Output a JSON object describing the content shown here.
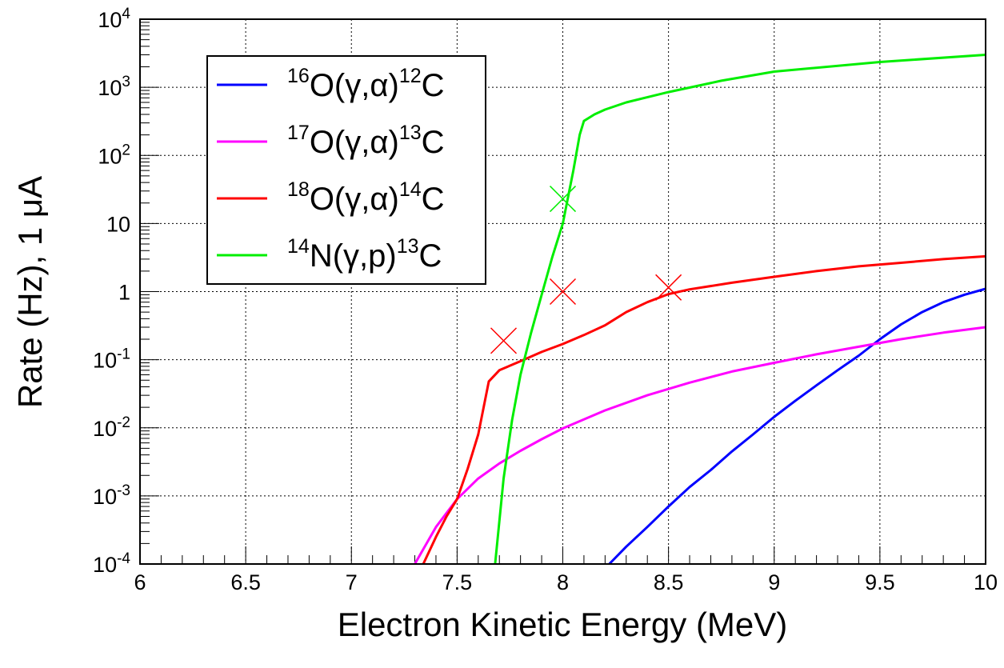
{
  "chart_data": {
    "type": "line",
    "title": "",
    "xlabel": "Electron Kinetic Energy (MeV)",
    "ylabel": "Rate (Hz), 1 μA",
    "xlim": [
      6,
      10
    ],
    "ylim": [
      0.0001,
      10000
    ],
    "yscale": "log",
    "grid": true,
    "legend_position": "top-left",
    "x_ticks": [
      "6",
      "6.5",
      "7",
      "7.5",
      "8",
      "8.5",
      "9",
      "9.5",
      "10"
    ],
    "y_ticks": [
      {
        "base": "10",
        "exp": "-4"
      },
      {
        "base": "10",
        "exp": "-3"
      },
      {
        "base": "10",
        "exp": "-2"
      },
      {
        "base": "10",
        "exp": "-1"
      },
      {
        "base": "1",
        "exp": ""
      },
      {
        "base": "10",
        "exp": ""
      },
      {
        "base": "10",
        "exp": "2"
      },
      {
        "base": "10",
        "exp": "3"
      },
      {
        "base": "10",
        "exp": "4"
      }
    ],
    "series": [
      {
        "name": "16O(γ,α)12C",
        "label_parts": {
          "pre_sup": "16",
          "main": "O(γ,α)",
          "post_sup": "12",
          "end": "C"
        },
        "color": "#0000ff",
        "x": [
          8.22,
          8.3,
          8.4,
          8.5,
          8.6,
          8.7,
          8.8,
          8.9,
          9.0,
          9.1,
          9.2,
          9.3,
          9.4,
          9.5,
          9.6,
          9.7,
          9.8,
          9.9,
          10.0
        ],
        "y": [
          0.0001,
          0.00018,
          0.00035,
          0.0007,
          0.00135,
          0.0024,
          0.0045,
          0.008,
          0.0145,
          0.025,
          0.042,
          0.07,
          0.115,
          0.2,
          0.33,
          0.5,
          0.7,
          0.9,
          1.1
        ]
      },
      {
        "name": "17O(γ,α)13C",
        "label_parts": {
          "pre_sup": "17",
          "main": "O(γ,α)",
          "post_sup": "13",
          "end": "C"
        },
        "color": "#ff00ff",
        "x": [
          7.3,
          7.4,
          7.5,
          7.6,
          7.7,
          7.8,
          7.9,
          8.0,
          8.2,
          8.4,
          8.6,
          8.8,
          9.0,
          9.2,
          9.4,
          9.6,
          9.8,
          10.0
        ],
        "y": [
          0.0001,
          0.00035,
          0.0009,
          0.0018,
          0.003,
          0.0046,
          0.0068,
          0.0098,
          0.018,
          0.03,
          0.046,
          0.067,
          0.09,
          0.12,
          0.155,
          0.2,
          0.25,
          0.3
        ]
      },
      {
        "name": "18O(γ,α)14C",
        "label_parts": {
          "pre_sup": "18",
          "main": "O(γ,α)",
          "post_sup": "14",
          "end": "C"
        },
        "color": "#ff0000",
        "x": [
          7.34,
          7.4,
          7.45,
          7.5,
          7.55,
          7.6,
          7.65,
          7.7,
          7.8,
          7.9,
          8.0,
          8.1,
          8.2,
          8.3,
          8.4,
          8.5,
          8.6,
          8.8,
          9.0,
          9.2,
          9.4,
          9.6,
          9.8,
          10.0
        ],
        "y": [
          0.0001,
          0.00025,
          0.0005,
          0.0009,
          0.0025,
          0.008,
          0.048,
          0.07,
          0.095,
          0.13,
          0.17,
          0.23,
          0.32,
          0.5,
          0.7,
          0.92,
          1.08,
          1.35,
          1.65,
          2.0,
          2.35,
          2.65,
          3.0,
          3.3
        ]
      },
      {
        "name": "14N(γ,p)13C",
        "label_parts": {
          "pre_sup": "14",
          "main": "N(γ,p)",
          "post_sup": "13",
          "end": "C"
        },
        "color": "#00ee00",
        "x": [
          7.68,
          7.72,
          7.76,
          7.8,
          7.85,
          7.9,
          7.95,
          8.0,
          8.05,
          8.08,
          8.1,
          8.15,
          8.2,
          8.3,
          8.5,
          8.75,
          9.0,
          9.5,
          10.0
        ],
        "y": [
          0.0001,
          0.0018,
          0.013,
          0.06,
          0.25,
          0.9,
          3.2,
          10,
          60,
          200,
          320,
          400,
          470,
          600,
          850,
          1250,
          1700,
          2350,
          3000
        ]
      }
    ],
    "markers": [
      {
        "x": 7.72,
        "y": 0.19,
        "color": "#ff0000",
        "shape": "cross"
      },
      {
        "x": 8.0,
        "y": 1.0,
        "color": "#ff0000",
        "shape": "cross"
      },
      {
        "x": 8.5,
        "y": 1.15,
        "color": "#ff0000",
        "shape": "cross"
      },
      {
        "x": 8.0,
        "y": 23,
        "color": "#00ee00",
        "shape": "cross"
      }
    ]
  }
}
